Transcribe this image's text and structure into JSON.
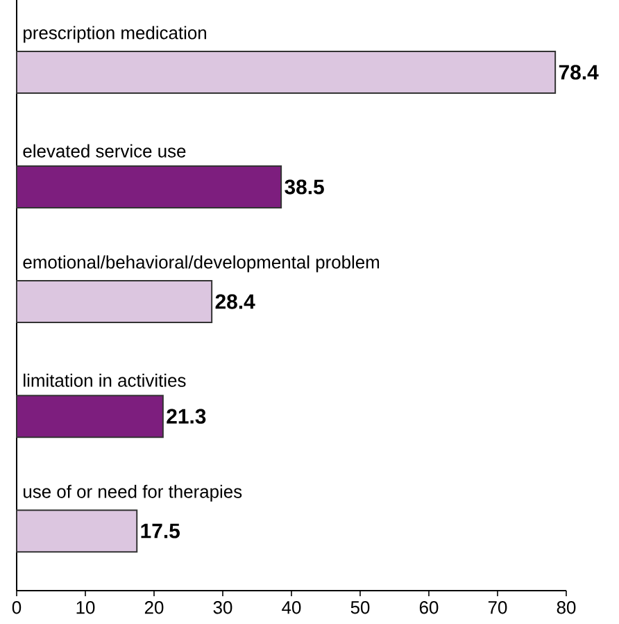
{
  "chart_data": {
    "type": "bar",
    "orientation": "horizontal",
    "categories": [
      "prescription medication",
      "elevated service use",
      "emotional/behavioral/developmental problem",
      "limitation in activities",
      "use of or need for therapies"
    ],
    "values": [
      78.4,
      38.5,
      28.4,
      21.3,
      17.5
    ],
    "colors": [
      "#dcc6e0",
      "#7d1e7e",
      "#dcc6e0",
      "#7d1e7e",
      "#dcc6e0"
    ],
    "xlim": [
      0,
      80
    ],
    "xticks": [
      0,
      10,
      20,
      30,
      40,
      50,
      60,
      70,
      80
    ],
    "data_labels": true
  }
}
